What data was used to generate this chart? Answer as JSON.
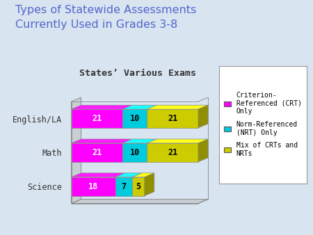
{
  "title": "Types of Statewide Assessments\nCurrently Used in Grades 3-8",
  "chart_title": "States’ Various Exams",
  "categories": [
    "English/LA",
    "Math",
    "Science"
  ],
  "series": [
    {
      "label": "Criterion-\nReferenced (CRT)\nOnly",
      "values": [
        21,
        21,
        18
      ],
      "color": "#FF00FF"
    },
    {
      "label": "Norm-Referenced\n(NRT) Only",
      "values": [
        10,
        10,
        7
      ],
      "color": "#00CCDD"
    },
    {
      "label": "Mix of CRTs and\nNRTs",
      "values": [
        21,
        21,
        5
      ],
      "color": "#CCCC00"
    }
  ],
  "background_color": "#D8E4F0",
  "title_color": "#5566CC",
  "chart_bg_color": "#D8E4F0",
  "bar_text_color": "#000000",
  "xlim": [
    0,
    58
  ]
}
